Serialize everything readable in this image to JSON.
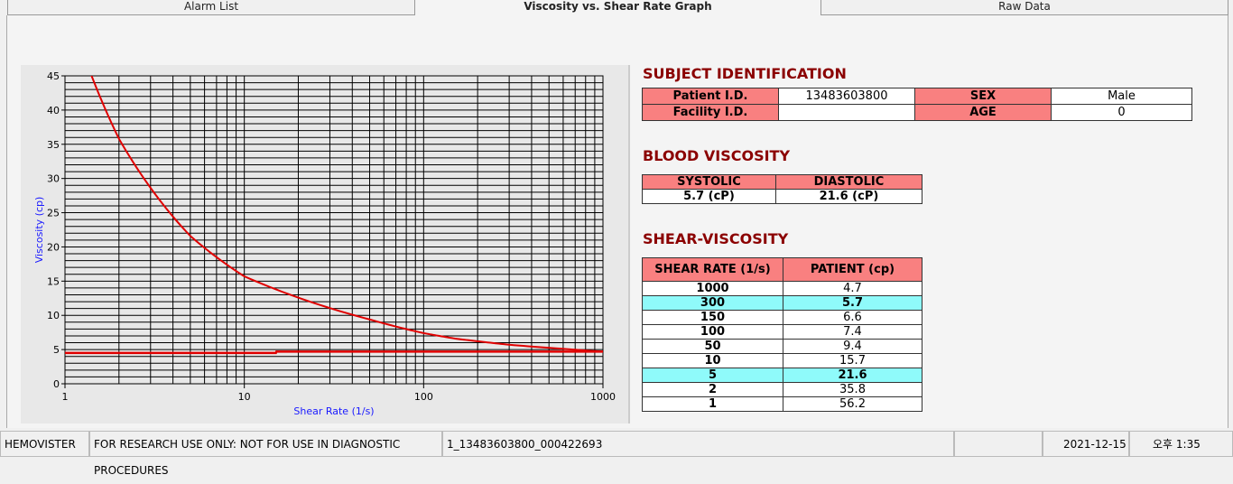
{
  "tabs": [
    {
      "label": "Alarm List"
    },
    {
      "label": "Viscosity vs. Shear Rate Graph",
      "active": true
    },
    {
      "label": "Raw Data"
    }
  ],
  "subject": {
    "title": "SUBJECT IDENTIFICATION",
    "patient_id_label": "Patient I.D.",
    "patient_id": "13483603800",
    "sex_label": "SEX",
    "sex": "Male",
    "facility_label": "Facility I.D.",
    "facility": "",
    "age_label": "AGE",
    "age": "0"
  },
  "blood": {
    "title": "BLOOD VISCOSITY",
    "systolic_label": "SYSTOLIC",
    "diastolic_label": "DIASTOLIC",
    "systolic": "5.7 (cP)",
    "diastolic": "21.6 (cP)"
  },
  "shear": {
    "title": "SHEAR-VISCOSITY",
    "col1": "SHEAR RATE (1/s)",
    "col2": "PATIENT (cp)",
    "rows": [
      {
        "rate": "1000",
        "val": "4.7"
      },
      {
        "rate": "300",
        "val": "5.7",
        "hl": true
      },
      {
        "rate": "150",
        "val": "6.6"
      },
      {
        "rate": "100",
        "val": "7.4"
      },
      {
        "rate": "50",
        "val": "9.4"
      },
      {
        "rate": "10",
        "val": "15.7"
      },
      {
        "rate": "5",
        "val": "21.6",
        "hl": true
      },
      {
        "rate": "2",
        "val": "35.8"
      },
      {
        "rate": "1",
        "val": "56.2"
      }
    ]
  },
  "status": {
    "app": "HEMOVISTER",
    "notice": "FOR RESEARCH USE ONLY: NOT FOR USE IN DIAGNOSTIC PROCEDURES",
    "record": "1_13483603800_000422693",
    "blank": "",
    "date": "2021-12-15",
    "time": "오후 1:35"
  },
  "chart_data": {
    "type": "line",
    "xlabel": "Shear Rate (1/s)",
    "ylabel": "Viscosity (cp)",
    "xscale": "log",
    "xlim": [
      1,
      1000
    ],
    "ylim": [
      0,
      45
    ],
    "xticks": [
      "1",
      "10",
      "100",
      "1000"
    ],
    "yticks": [
      "0",
      "5",
      "10",
      "15",
      "20",
      "25",
      "30",
      "35",
      "40",
      "45"
    ],
    "grid": true,
    "line_color": "#e00000",
    "series": [
      {
        "x": [
          1,
          2,
          5,
          10,
          50,
          100,
          150,
          300,
          1000
        ],
        "y": [
          56.2,
          35.8,
          21.6,
          15.7,
          9.4,
          7.4,
          6.6,
          5.7,
          4.7
        ]
      },
      {
        "x": [
          1,
          15,
          15.1,
          1000
        ],
        "y": [
          4.5,
          4.5,
          4.7,
          4.7
        ]
      }
    ]
  }
}
